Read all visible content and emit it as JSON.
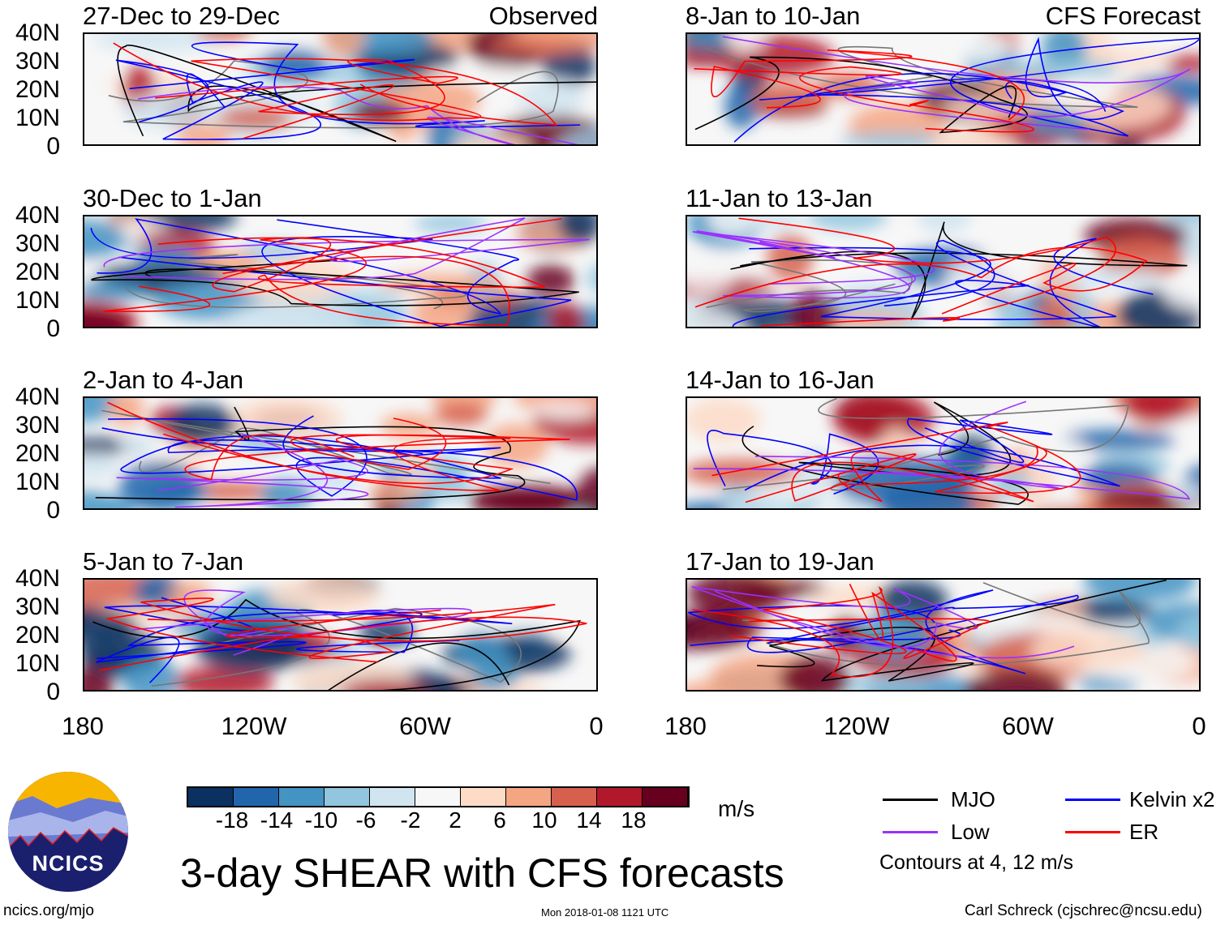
{
  "panels": [
    {
      "title": "27-Dec to 29-Dec",
      "tag": "Observed"
    },
    {
      "title": "8-Jan to 10-Jan",
      "tag": "CFS Forecast"
    },
    {
      "title": "30-Dec to 1-Jan"
    },
    {
      "title": "11-Jan to 13-Jan"
    },
    {
      "title": "2-Jan to 4-Jan"
    },
    {
      "title": "14-Jan to 16-Jan"
    },
    {
      "title": "5-Jan to 7-Jan"
    },
    {
      "title": "17-Jan to 19-Jan"
    }
  ],
  "lat_labels": [
    "40N",
    "30N",
    "20N",
    "10N",
    "0"
  ],
  "lon_labels": [
    "180",
    "120W",
    "60W",
    "0"
  ],
  "colorbar": {
    "colors": [
      "#0b3160",
      "#2166ac",
      "#4393c3",
      "#92c5de",
      "#d1e5f0",
      "#f7f7f7",
      "#fddbc7",
      "#f4a582",
      "#d6604d",
      "#b2182b",
      "#67001f"
    ],
    "labels": [
      "-18",
      "-14",
      "-10",
      "-6",
      "-2",
      "2",
      "6",
      "10",
      "14",
      "18"
    ],
    "units": "m/s"
  },
  "legend": {
    "items": [
      {
        "label": "MJO",
        "color": "#000000"
      },
      {
        "label": "Kelvin x2",
        "color": "#0000ff"
      },
      {
        "label": "Low",
        "color": "#9b30ff"
      },
      {
        "label": "ER",
        "color": "#ff0000"
      }
    ],
    "note": "Contours at 4, 12 m/s"
  },
  "title": "3-day SHEAR with CFS forecasts",
  "logo_text": "NCICS",
  "footer": {
    "left": "ncics.org/mjo",
    "center": "Mon 2018-01-08 1121 UTC",
    "right": "Carl Schreck (cjschrec@ncsu.edu)"
  }
}
